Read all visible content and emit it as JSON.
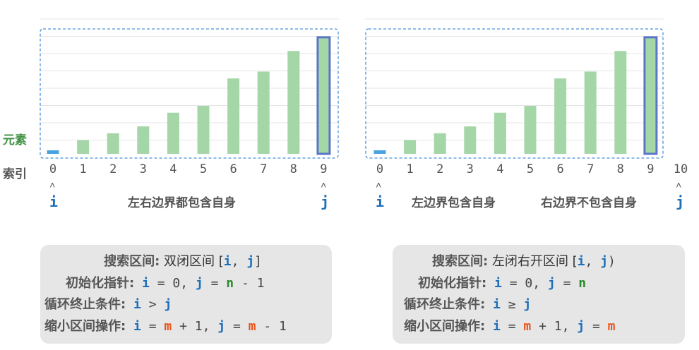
{
  "labels": {
    "element": "元素",
    "index": "索引"
  },
  "left": {
    "indices": [
      "0",
      "1",
      "2",
      "3",
      "4",
      "5",
      "6",
      "7",
      "8",
      "9"
    ],
    "pointer_i": "i",
    "pointer_j": "j",
    "arrow": "˄",
    "caption": "左右边界都包含自身",
    "code": {
      "l1_label": "搜索区间:",
      "l1_text": " 双闭区间 [",
      "l1_i": "i",
      "l1_comma": ", ",
      "l1_j": "j",
      "l1_end": "]",
      "l2_label": "初始化指针:",
      "l2_i": " i",
      "l2_eq": " = 0, ",
      "l2_j": "j",
      "l2_eq2": " = ",
      "l2_n": "n",
      "l2_tail": " - 1",
      "l3_label": "循环终止条件:",
      "l3_i": " i",
      "l3_op": " > ",
      "l3_j": "j",
      "l4_label": "缩小区间操作:",
      "l4_i": " i",
      "l4_eq": " = ",
      "l4_m": "m",
      "l4_plus": " + 1, ",
      "l4_j": "j",
      "l4_eq2": " = ",
      "l4_m2": "m",
      "l4_tail": " - 1"
    }
  },
  "right": {
    "indices": [
      "0",
      "1",
      "2",
      "3",
      "4",
      "5",
      "6",
      "7",
      "8",
      "9",
      "10"
    ],
    "pointer_i": "i",
    "pointer_j": "j",
    "arrow": "˄",
    "caption_left": "左边界包含自身",
    "caption_right": "右边界不包含自身",
    "code": {
      "l1_label": "搜索区间:",
      "l1_text": " 左闭右开区间 [",
      "l1_i": "i",
      "l1_comma": ", ",
      "l1_j": "j",
      "l1_end": ")",
      "l2_label": "初始化指针:",
      "l2_i": " i",
      "l2_eq": " = 0, ",
      "l2_j": "j",
      "l2_eq2": " = ",
      "l2_n": "n",
      "l3_label": "循环终止条件:",
      "l3_i": " i",
      "l3_op": " ≥ ",
      "l3_j": "j",
      "l4_label": "缩小区间操作:",
      "l4_i": " i",
      "l4_eq": " = ",
      "l4_m": "m",
      "l4_plus": " + 1, ",
      "l4_j": "j",
      "l4_eq2": " = ",
      "l4_m2": "m"
    }
  },
  "chart_data": {
    "type": "bar",
    "values": [
      1,
      2,
      3,
      4,
      6,
      7,
      11,
      12,
      15,
      17
    ],
    "ylim": [
      0,
      17.5
    ],
    "colors": {
      "bar": "#a5d6a7",
      "bar_border": "#82b484",
      "highlight_border": "#5a76c8",
      "first_bar": "#4aa3df",
      "grid": "#e5e5e5",
      "dashed": "#4a90d9"
    }
  }
}
